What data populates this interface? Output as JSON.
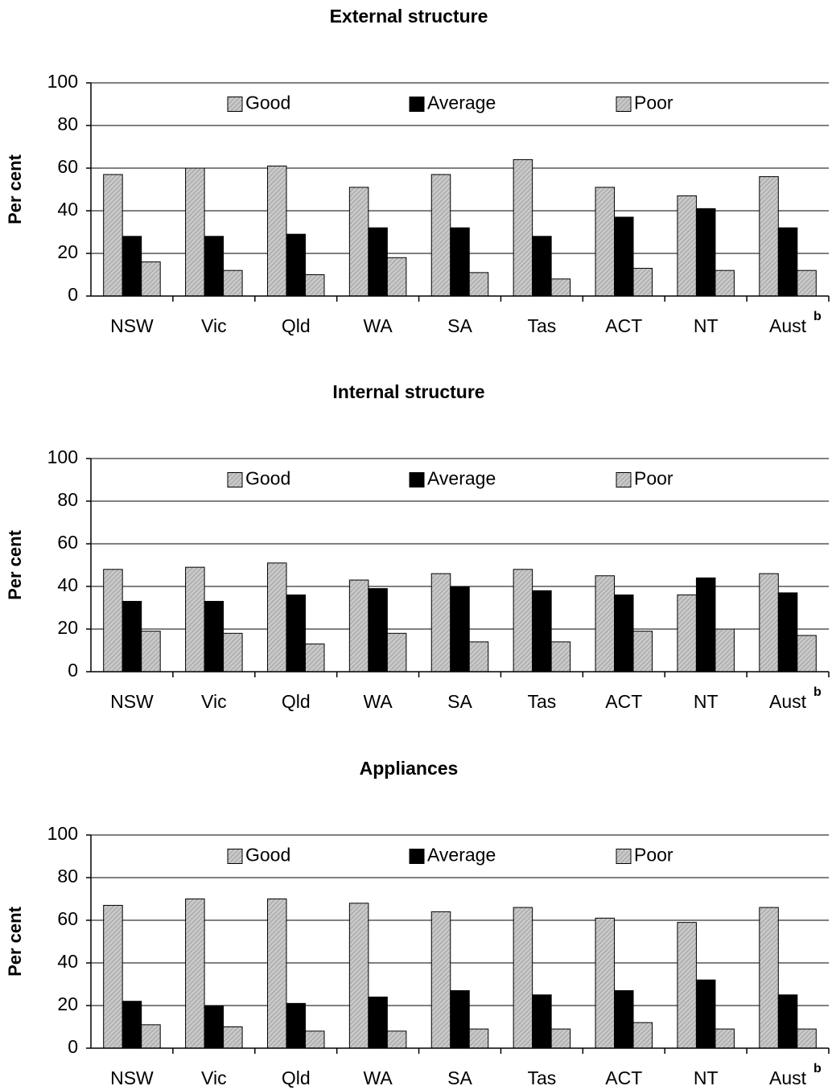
{
  "chart_data": [
    {
      "type": "bar",
      "title": "External structure",
      "y_label": "Per cent",
      "categories": [
        "NSW",
        "Vic",
        "Qld",
        "WA",
        "SA",
        "Tas",
        "ACT",
        "NT",
        "Aust"
      ],
      "category_superscripts": [
        null,
        null,
        null,
        null,
        null,
        null,
        null,
        null,
        "b"
      ],
      "series": [
        {
          "name": "Good",
          "color": "#c8c8c8",
          "values": [
            57,
            60,
            61,
            51,
            57,
            64,
            51,
            47,
            56
          ]
        },
        {
          "name": "Average",
          "color": "#000000",
          "values": [
            28,
            28,
            29,
            32,
            32,
            28,
            37,
            41,
            32
          ]
        },
        {
          "name": "Poor",
          "color": "#c8c8c8",
          "values": [
            16,
            12,
            10,
            18,
            11,
            8,
            13,
            12,
            12
          ]
        }
      ],
      "ylim": [
        0,
        100
      ],
      "yticks": [
        0,
        20,
        40,
        60,
        80,
        100
      ],
      "grid": true,
      "legend": "top"
    },
    {
      "type": "bar",
      "title": "Internal structure",
      "y_label": "Per cent",
      "categories": [
        "NSW",
        "Vic",
        "Qld",
        "WA",
        "SA",
        "Tas",
        "ACT",
        "NT",
        "Aust"
      ],
      "category_superscripts": [
        null,
        null,
        null,
        null,
        null,
        null,
        null,
        null,
        "b"
      ],
      "series": [
        {
          "name": "Good",
          "color": "#c8c8c8",
          "values": [
            48,
            49,
            51,
            43,
            46,
            48,
            45,
            36,
            46
          ]
        },
        {
          "name": "Average",
          "color": "#000000",
          "values": [
            33,
            33,
            36,
            39,
            40,
            38,
            36,
            44,
            37
          ]
        },
        {
          "name": "Poor",
          "color": "#c8c8c8",
          "values": [
            19,
            18,
            13,
            18,
            14,
            14,
            19,
            20,
            17
          ]
        }
      ],
      "ylim": [
        0,
        100
      ],
      "yticks": [
        0,
        20,
        40,
        60,
        80,
        100
      ],
      "grid": true,
      "legend": "top"
    },
    {
      "type": "bar",
      "title": "Appliances",
      "y_label": "Per cent",
      "categories": [
        "NSW",
        "Vic",
        "Qld",
        "WA",
        "SA",
        "Tas",
        "ACT",
        "NT",
        "Aust"
      ],
      "category_superscripts": [
        null,
        null,
        null,
        null,
        null,
        null,
        null,
        null,
        "b"
      ],
      "series": [
        {
          "name": "Good",
          "color": "#c8c8c8",
          "values": [
            67,
            70,
            70,
            68,
            64,
            66,
            61,
            59,
            66
          ]
        },
        {
          "name": "Average",
          "color": "#000000",
          "values": [
            22,
            20,
            21,
            24,
            27,
            25,
            27,
            32,
            25
          ]
        },
        {
          "name": "Poor",
          "color": "#c8c8c8",
          "values": [
            11,
            10,
            8,
            8,
            9,
            9,
            12,
            9,
            9
          ]
        }
      ],
      "ylim": [
        0,
        100
      ],
      "yticks": [
        0,
        20,
        40,
        60,
        80,
        100
      ],
      "grid": true,
      "legend": "top"
    }
  ]
}
